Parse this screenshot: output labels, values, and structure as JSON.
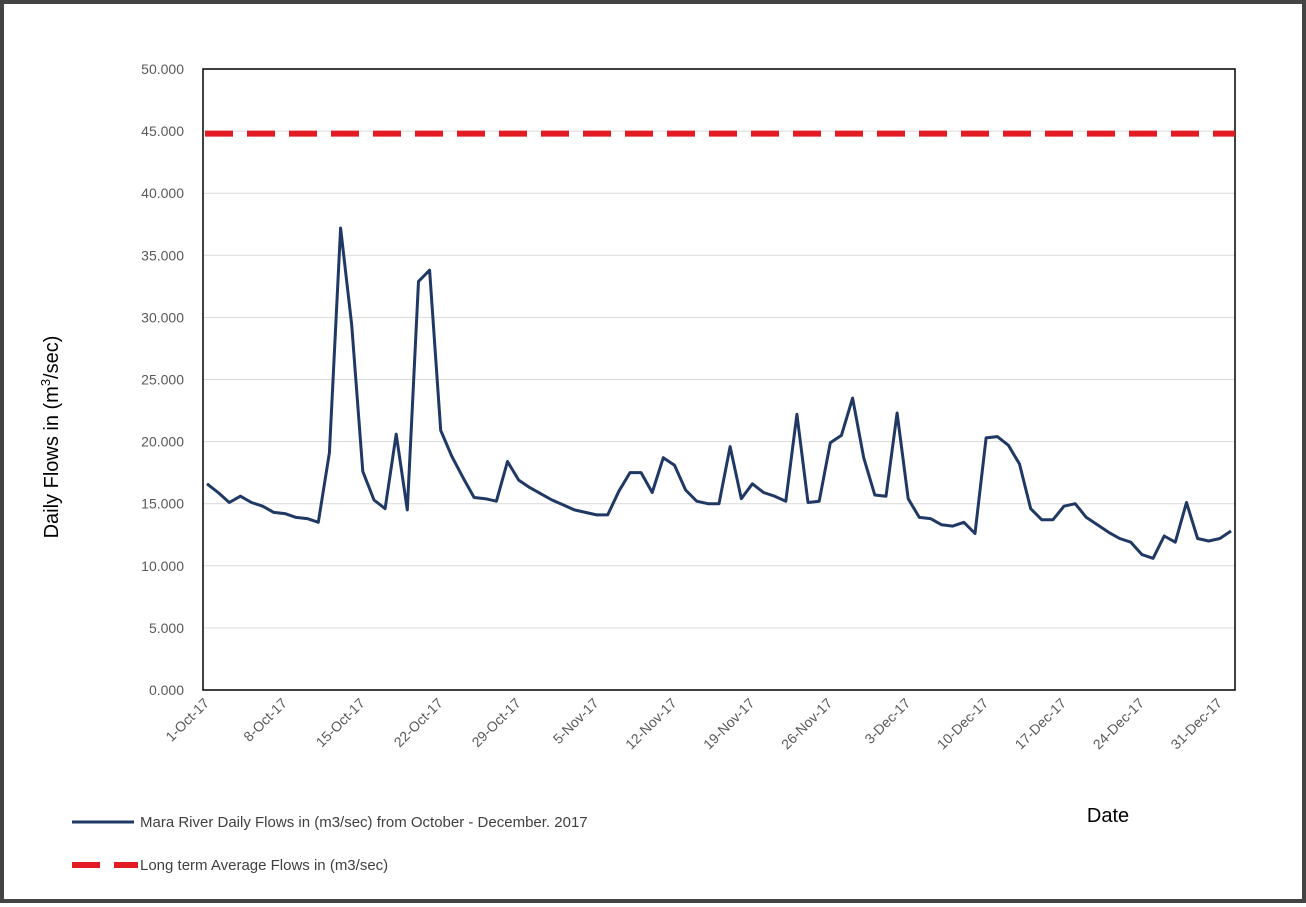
{
  "chart_data": {
    "type": "line",
    "ylabel": "Daily Flows in (m",
    "ylabel_sup": "3",
    "ylabel_tail": "/sec)",
    "xlabel": "Date",
    "ylim": [
      0,
      50
    ],
    "y_ticks": [
      "0.000",
      "5.000",
      "10.000",
      "15.000",
      "20.000",
      "25.000",
      "30.000",
      "35.000",
      "40.000",
      "45.000",
      "50.000"
    ],
    "x_ticks": [
      "1-Oct-17",
      "8-Oct-17",
      "15-Oct-17",
      "22-Oct-17",
      "29-Oct-17",
      "5-Nov-17",
      "12-Nov-17",
      "19-Nov-17",
      "26-Nov-17",
      "3-Dec-17",
      "10-Dec-17",
      "17-Dec-17",
      "24-Dec-17",
      "31-Dec-17"
    ],
    "grid": "horizontal",
    "legend_position": "bottom-left",
    "series": [
      {
        "name": "Mara River Daily Flows  in (m3/sec) from October - December. 2017",
        "color": "#1f3864",
        "style": "solid",
        "x_start": "1-Oct-17",
        "x_step_days": 1,
        "values": [
          16.6,
          15.9,
          15.1,
          15.6,
          15.1,
          14.8,
          14.3,
          14.2,
          13.9,
          13.8,
          13.5,
          19.1,
          37.2,
          29.4,
          17.6,
          15.3,
          14.6,
          20.6,
          14.5,
          32.9,
          33.8,
          20.9,
          18.8,
          17.1,
          15.5,
          15.4,
          15.2,
          18.4,
          16.9,
          16.3,
          15.8,
          15.3,
          14.9,
          14.5,
          14.3,
          14.1,
          14.1,
          16.0,
          17.5,
          17.5,
          15.9,
          18.7,
          18.1,
          16.1,
          15.2,
          15.0,
          15.0,
          19.6,
          15.4,
          16.6,
          15.9,
          15.6,
          15.2,
          22.2,
          15.1,
          15.2,
          19.9,
          20.5,
          23.5,
          18.7,
          15.7,
          15.6,
          22.3,
          15.4,
          13.9,
          13.8,
          13.3,
          13.2,
          13.5,
          12.6,
          20.3,
          20.4,
          19.7,
          18.2,
          14.6,
          13.7,
          13.7,
          14.8,
          15.0,
          13.9,
          13.3,
          12.7,
          12.2,
          11.9,
          10.9,
          10.6,
          12.4,
          11.9,
          15.1,
          12.2,
          12.0,
          12.2,
          12.8
        ]
      },
      {
        "name": "Long term Average Flows in (m3/sec)",
        "color": "#e31b23",
        "style": "dashed",
        "values": [
          44.8
        ]
      }
    ]
  }
}
